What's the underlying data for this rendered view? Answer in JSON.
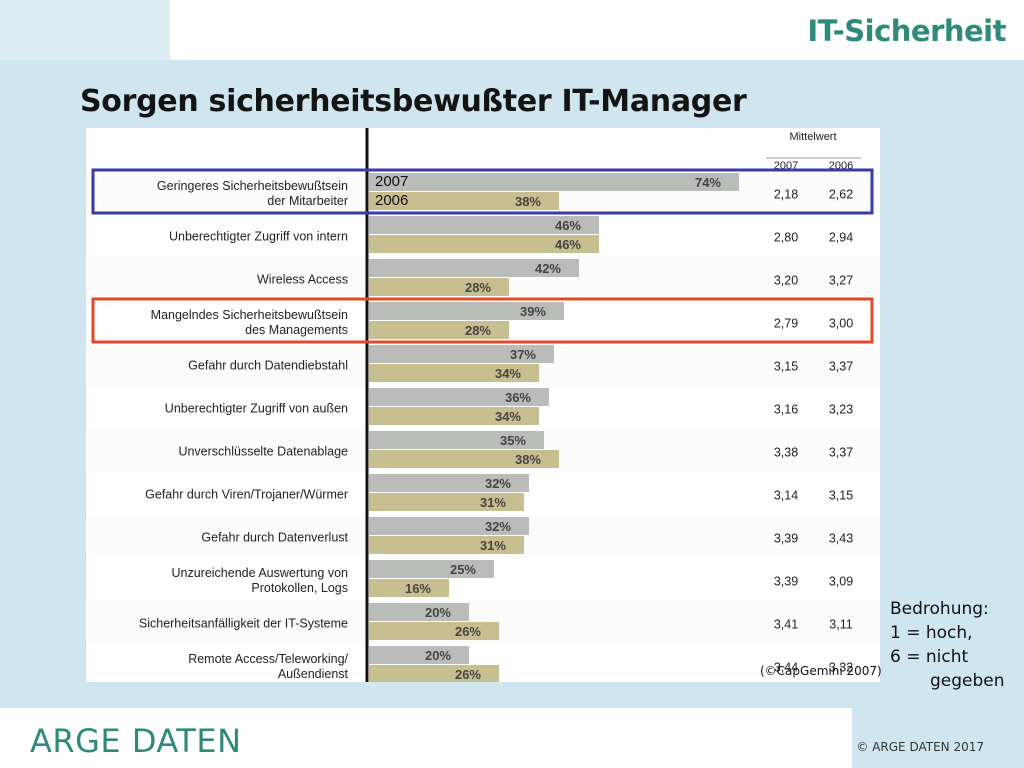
{
  "header": {
    "section_title": "IT-Sicherheit",
    "page_title": "Sorgen sicherheitsbewußter IT-Manager"
  },
  "chart_data": {
    "type": "bar",
    "orientation": "horizontal",
    "categories": [
      [
        "Geringeres Sicherheitsbewußtsein",
        "der Mitarbeiter"
      ],
      [
        "Unberechtigter Zugriff von intern"
      ],
      [
        "Wireless Access"
      ],
      [
        "Mangelndes Sicherheitsbewußtsein",
        "des Managements"
      ],
      [
        "Gefahr durch Datendiebstahl"
      ],
      [
        "Unberechtigter Zugriff von außen"
      ],
      [
        "Unverschlüsselte Datenablage"
      ],
      [
        "Gefahr durch Viren/Trojaner/Würmer"
      ],
      [
        "Gefahr durch Datenverlust"
      ],
      [
        "Unzureichende Auswertung von",
        "Protokollen, Logs"
      ],
      [
        "Sicherheitsanfälligkeit der IT-Systeme"
      ],
      [
        "Remote Access/Teleworking/",
        "Außendienst"
      ]
    ],
    "series": [
      {
        "name": "2007",
        "color": "#b9bcb8",
        "values": [
          74,
          46,
          42,
          39,
          37,
          36,
          35,
          32,
          32,
          25,
          20,
          20
        ]
      },
      {
        "name": "2006",
        "color": "#c7bf8f",
        "values": [
          38,
          46,
          28,
          28,
          34,
          34,
          38,
          31,
          31,
          16,
          26,
          26
        ]
      }
    ],
    "value_suffix": "%",
    "mean_header": "Mittelwert",
    "mean_columns": [
      "2007",
      "2006"
    ],
    "means": [
      [
        "2,18",
        "2,62"
      ],
      [
        "2,80",
        "2,94"
      ],
      [
        "3,20",
        "3,27"
      ],
      [
        "2,79",
        "3,00"
      ],
      [
        "3,15",
        "3,37"
      ],
      [
        "3,16",
        "3,23"
      ],
      [
        "3,38",
        "3,37"
      ],
      [
        "3,14",
        "3,15"
      ],
      [
        "3,39",
        "3,43"
      ],
      [
        "3,39",
        "3,09"
      ],
      [
        "3,41",
        "3,11"
      ],
      [
        "3,44",
        "3,32"
      ]
    ],
    "highlights": [
      {
        "index": 0,
        "color": "#3a3aa8"
      },
      {
        "index": 3,
        "color": "#e2492b"
      }
    ]
  },
  "threat_scale": {
    "title": "Bedrohung:",
    "line1": "1 = hoch,",
    "line2": "6 = nicht",
    "line3": "gegeben"
  },
  "source": "(©CapGemini 2007)",
  "footer": {
    "brand": "ARGE DATEN",
    "copyright": "© ARGE DATEN 2017"
  }
}
